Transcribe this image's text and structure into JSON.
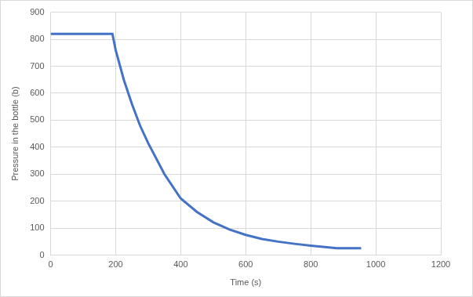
{
  "chart_data": {
    "type": "line",
    "x_label": "Time (s)",
    "y_label": "Pressure in the bottle (b)",
    "x": [
      0,
      190,
      200,
      225,
      250,
      275,
      300,
      350,
      400,
      450,
      500,
      550,
      600,
      650,
      700,
      750,
      800,
      850,
      880,
      955
    ],
    "values": [
      820,
      820,
      760,
      650,
      560,
      480,
      415,
      300,
      210,
      160,
      122,
      95,
      75,
      60,
      50,
      42,
      35,
      29,
      26,
      26
    ],
    "color": "#4472c4",
    "xlim": [
      0,
      1200
    ],
    "xticks": [
      0,
      200,
      400,
      600,
      800,
      1000,
      1200
    ],
    "ylim": [
      0,
      900
    ],
    "yticks": [
      0,
      100,
      200,
      300,
      400,
      500,
      600,
      700,
      800,
      900
    ],
    "grid": true
  }
}
